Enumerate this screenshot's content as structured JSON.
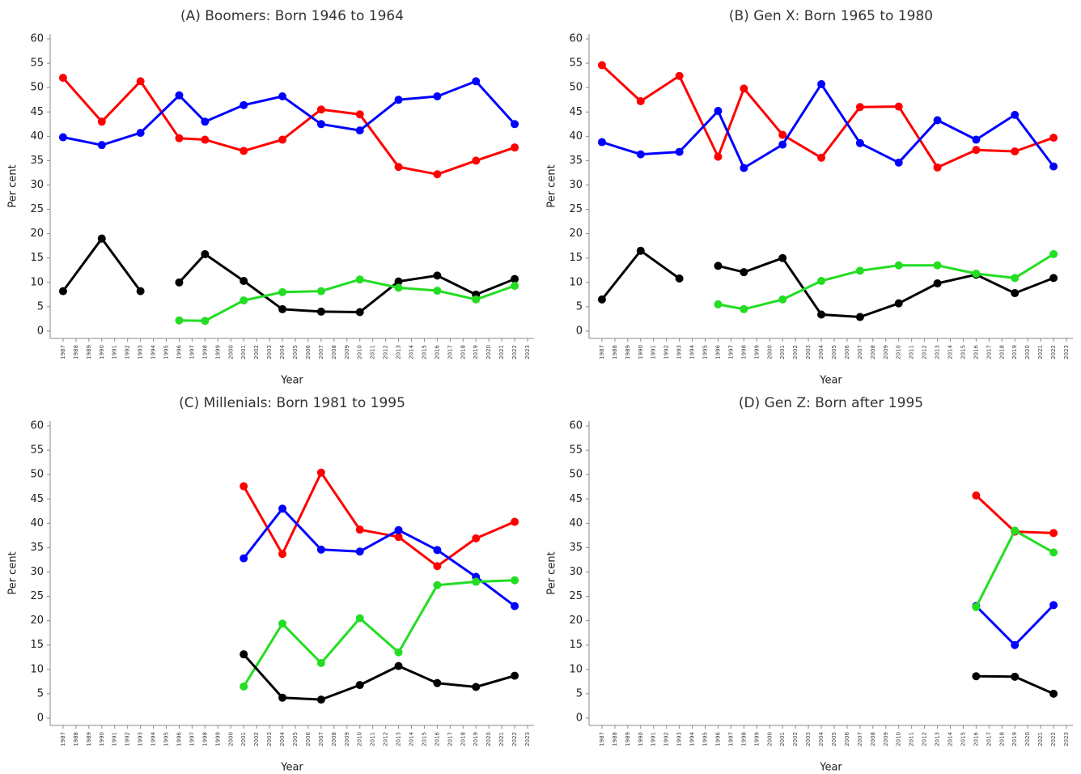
{
  "chart_data": [
    {
      "type": "line",
      "title": "(A) Boomers: Born 1946 to 1964",
      "x_label": "Year",
      "y_label": "Per cent",
      "x": [
        1987,
        1990,
        1993,
        1996,
        1998,
        2001,
        2004,
        2007,
        2010,
        2013,
        2016,
        2019,
        2022
      ],
      "series": [
        {
          "color": "#ff0000",
          "values": [
            52,
            43,
            51.3,
            39.6,
            39.3,
            37,
            39.3,
            45.5,
            44.5,
            33.7,
            32.2,
            35,
            37.7
          ]
        },
        {
          "color": "#0000ff",
          "values": [
            39.8,
            38.2,
            40.7,
            48.4,
            43,
            46.4,
            48.2,
            42.5,
            41.2,
            47.5,
            48.2,
            51.3,
            42.5
          ]
        },
        {
          "color": "#000000",
          "values": [
            8.2,
            19,
            8.2,
            null,
            null,
            null,
            null,
            null,
            null,
            null,
            null,
            null,
            null
          ]
        },
        {
          "color": "#000000",
          "values": [
            null,
            null,
            null,
            10,
            15.8,
            10.3,
            4.5,
            4,
            3.9,
            10.2,
            11.4,
            7.5,
            10.7
          ]
        },
        {
          "color": "#22dd22",
          "values": [
            null,
            null,
            null,
            2.2,
            2.1,
            6.3,
            8,
            8.2,
            10.6,
            8.9,
            8.3,
            6.5,
            9.3
          ]
        }
      ],
      "xlim": [
        1986,
        2023.5
      ],
      "xticks": [
        1987,
        1988,
        1989,
        1990,
        1991,
        1992,
        1993,
        1994,
        1995,
        1996,
        1997,
        1998,
        1999,
        2000,
        2001,
        2002,
        2003,
        2004,
        2005,
        2006,
        2007,
        2008,
        2009,
        2010,
        2011,
        2012,
        2013,
        2014,
        2015,
        2016,
        2017,
        2018,
        2019,
        2020,
        2021,
        2022,
        2023
      ],
      "ylim": [
        -1.5,
        61
      ],
      "yticks": [
        0,
        5,
        10,
        15,
        20,
        25,
        30,
        35,
        40,
        45,
        50,
        55,
        60
      ]
    },
    {
      "type": "line",
      "title": "(B) Gen X: Born 1965 to 1980",
      "x_label": "Year",
      "y_label": "Per cent",
      "x": [
        1987,
        1990,
        1993,
        1996,
        1998,
        2001,
        2004,
        2007,
        2010,
        2013,
        2016,
        2019,
        2022
      ],
      "series": [
        {
          "color": "#ff0000",
          "values": [
            54.6,
            47.2,
            52.4,
            35.8,
            49.8,
            40.3,
            35.6,
            46,
            46.1,
            33.6,
            37.2,
            36.9,
            39.7
          ]
        },
        {
          "color": "#0000ff",
          "values": [
            38.8,
            36.3,
            36.8,
            45.2,
            33.5,
            38.3,
            50.7,
            38.6,
            34.6,
            43.3,
            39.3,
            44.4,
            33.8
          ]
        },
        {
          "color": "#000000",
          "values": [
            6.5,
            16.5,
            10.8,
            null,
            null,
            null,
            null,
            null,
            null,
            null,
            null,
            null,
            null
          ]
        },
        {
          "color": "#000000",
          "values": [
            null,
            null,
            null,
            13.4,
            12.1,
            15,
            3.4,
            2.9,
            5.7,
            9.8,
            11.6,
            7.8,
            10.9
          ]
        },
        {
          "color": "#22dd22",
          "values": [
            null,
            null,
            null,
            5.5,
            4.5,
            6.5,
            10.3,
            12.4,
            13.5,
            13.5,
            11.8,
            10.9,
            15.8
          ]
        }
      ],
      "xlim": [
        1986,
        2023.5
      ],
      "xticks": [
        1987,
        1988,
        1989,
        1990,
        1991,
        1992,
        1993,
        1994,
        1995,
        1996,
        1997,
        1998,
        1999,
        2000,
        2001,
        2002,
        2003,
        2004,
        2005,
        2006,
        2007,
        2008,
        2009,
        2010,
        2011,
        2012,
        2013,
        2014,
        2015,
        2016,
        2017,
        2018,
        2019,
        2020,
        2021,
        2022,
        2023
      ],
      "ylim": [
        -1.5,
        61
      ],
      "yticks": [
        0,
        5,
        10,
        15,
        20,
        25,
        30,
        35,
        40,
        45,
        50,
        55,
        60
      ]
    },
    {
      "type": "line",
      "title": "(C) Millenials: Born 1981 to 1995",
      "x_label": "Year",
      "y_label": "Per cent",
      "x": [
        2001,
        2004,
        2007,
        2010,
        2013,
        2016,
        2019,
        2022
      ],
      "series": [
        {
          "color": "#ff0000",
          "values": [
            47.6,
            33.7,
            50.4,
            38.7,
            37.2,
            31.2,
            36.9,
            40.3
          ]
        },
        {
          "color": "#0000ff",
          "values": [
            32.8,
            43,
            34.6,
            34.2,
            38.6,
            34.5,
            29,
            23
          ]
        },
        {
          "color": "#22dd22",
          "values": [
            6.5,
            19.4,
            11.3,
            20.5,
            13.5,
            27.3,
            28,
            28.3
          ]
        },
        {
          "color": "#000000",
          "values": [
            13.1,
            4.2,
            3.8,
            6.8,
            10.7,
            7.2,
            6.4,
            8.7
          ]
        }
      ],
      "xlim": [
        1986,
        2023.5
      ],
      "xticks": [
        1987,
        1988,
        1989,
        1990,
        1991,
        1992,
        1993,
        1994,
        1995,
        1996,
        1997,
        1998,
        1999,
        2000,
        2001,
        2002,
        2003,
        2004,
        2005,
        2006,
        2007,
        2008,
        2009,
        2010,
        2011,
        2012,
        2013,
        2014,
        2015,
        2016,
        2017,
        2018,
        2019,
        2020,
        2021,
        2022,
        2023
      ],
      "ylim": [
        -1.5,
        61
      ],
      "yticks": [
        0,
        5,
        10,
        15,
        20,
        25,
        30,
        35,
        40,
        45,
        50,
        55,
        60
      ]
    },
    {
      "type": "line",
      "title": "(D) Gen Z: Born after 1995",
      "x_label": "Year",
      "y_label": "Per cent",
      "x": [
        2016,
        2019,
        2022
      ],
      "series": [
        {
          "color": "#ff0000",
          "values": [
            45.7,
            38.3,
            38
          ]
        },
        {
          "color": "#0000ff",
          "values": [
            23,
            15,
            23.2
          ]
        },
        {
          "color": "#22dd22",
          "values": [
            22.8,
            38.5,
            34
          ]
        },
        {
          "color": "#000000",
          "values": [
            8.6,
            8.5,
            5
          ]
        }
      ],
      "xlim": [
        1986,
        2023.5
      ],
      "xticks": [
        1987,
        1988,
        1989,
        1990,
        1991,
        1992,
        1993,
        1994,
        1995,
        1996,
        1997,
        1998,
        1999,
        2000,
        2001,
        2002,
        2003,
        2004,
        2005,
        2006,
        2007,
        2008,
        2009,
        2010,
        2011,
        2012,
        2013,
        2014,
        2015,
        2016,
        2017,
        2018,
        2019,
        2020,
        2021,
        2022,
        2023
      ],
      "ylim": [
        -1.5,
        61
      ],
      "yticks": [
        0,
        5,
        10,
        15,
        20,
        25,
        30,
        35,
        40,
        45,
        50,
        55,
        60
      ]
    }
  ]
}
